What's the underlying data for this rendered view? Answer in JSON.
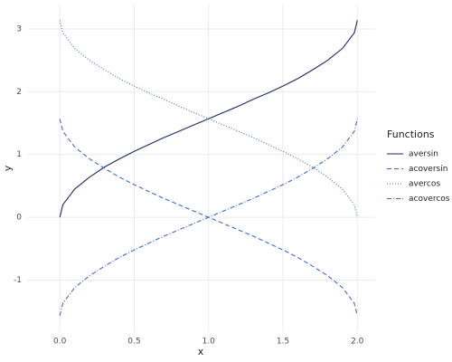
{
  "chart_data": {
    "type": "line",
    "xlabel": "x",
    "ylabel": "y",
    "legend_title": "Functions",
    "legend": "right",
    "x": [
      0,
      0.02,
      0.1,
      0.2,
      0.3,
      0.4,
      0.5,
      0.6,
      0.7,
      0.8,
      0.9,
      1.0,
      1.1,
      1.2,
      1.3,
      1.4,
      1.5,
      1.6,
      1.7,
      1.8,
      1.9,
      1.98,
      2.0
    ],
    "series": [
      {
        "name": "aversin",
        "color": "#1b2a6b",
        "linestyle": "solid",
        "values": [
          0,
          0.2,
          0.45,
          0.64,
          0.8,
          0.93,
          1.05,
          1.16,
          1.27,
          1.37,
          1.47,
          1.57,
          1.67,
          1.77,
          1.88,
          1.98,
          2.09,
          2.21,
          2.35,
          2.5,
          2.69,
          2.94,
          3.14
        ]
      },
      {
        "name": "acoversin",
        "color": "#4169d9",
        "linestyle": "dashed",
        "values": [
          1.57,
          1.37,
          1.12,
          0.93,
          0.78,
          0.64,
          0.52,
          0.41,
          0.3,
          0.2,
          0.1,
          0,
          -0.1,
          -0.2,
          -0.3,
          -0.41,
          -0.52,
          -0.64,
          -0.78,
          -0.93,
          -1.12,
          -1.37,
          -1.57
        ]
      },
      {
        "name": "avercos",
        "color": "#4169d9",
        "linestyle": "dotted",
        "values": [
          3.14,
          2.94,
          2.69,
          2.5,
          2.35,
          2.21,
          2.09,
          1.98,
          1.88,
          1.77,
          1.67,
          1.57,
          1.47,
          1.37,
          1.27,
          1.16,
          1.05,
          0.93,
          0.8,
          0.64,
          0.45,
          0.2,
          0
        ]
      },
      {
        "name": "acovercos",
        "color": "#4169d9",
        "linestyle": "dashdot",
        "values": [
          -1.57,
          -1.37,
          -1.12,
          -0.93,
          -0.78,
          -0.64,
          -0.52,
          -0.41,
          -0.3,
          -0.2,
          -0.1,
          0,
          0.1,
          0.2,
          0.3,
          0.41,
          0.52,
          0.64,
          0.78,
          0.93,
          1.12,
          1.37,
          1.57
        ]
      }
    ],
    "xlim": [
      -0.22,
      2.12
    ],
    "xticks": [
      {
        "value": 0,
        "label": "0.0"
      },
      0.5,
      {
        "value": 1,
        "label": "1.0"
      },
      1.5,
      {
        "value": 2,
        "label": "2.0"
      }
    ],
    "ylim": [
      -1.83,
      3.39
    ],
    "yticks": [
      -1,
      0,
      1,
      2,
      3
    ],
    "grid": true
  }
}
